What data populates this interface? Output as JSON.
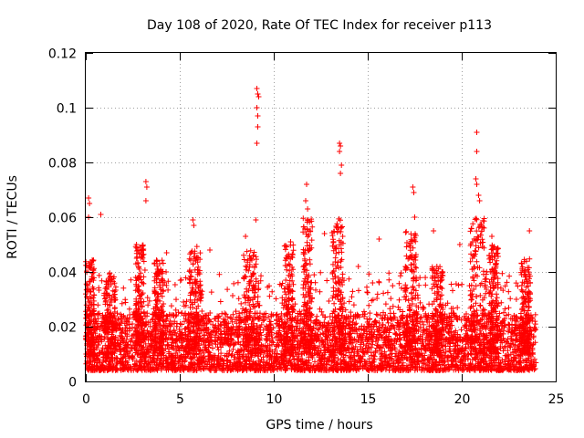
{
  "chart_data": {
    "type": "scatter",
    "title": "Day 108 of 2020, Rate Of TEC Index for receiver p113",
    "xlabel": "GPS time / hours",
    "ylabel": "ROTI / TECUs",
    "xlim": [
      0,
      25
    ],
    "ylim": [
      0,
      0.12
    ],
    "x_ticks": [
      0,
      5,
      10,
      15,
      20,
      25
    ],
    "y_ticks": [
      0,
      0.02,
      0.04,
      0.06,
      0.08,
      0.1,
      0.12
    ],
    "x_tick_labels": [
      "0",
      "5",
      "10",
      "15",
      "20",
      "25"
    ],
    "y_tick_labels": [
      "0",
      "0.02",
      "0.04",
      "0.06",
      "0.08",
      "0.1",
      "0.12"
    ],
    "grid": true,
    "marker": "plus",
    "series_color": "#ff0000",
    "x_range_of_data": [
      0,
      23.95
    ],
    "outlier_points": [
      {
        "x": 9.1,
        "y": 0.107
      },
      {
        "x": 9.15,
        "y": 0.105
      },
      {
        "x": 9.2,
        "y": 0.104
      },
      {
        "x": 9.1,
        "y": 0.1
      },
      {
        "x": 9.15,
        "y": 0.097
      },
      {
        "x": 9.15,
        "y": 0.093
      },
      {
        "x": 9.1,
        "y": 0.087
      },
      {
        "x": 9.05,
        "y": 0.059
      },
      {
        "x": 13.5,
        "y": 0.087
      },
      {
        "x": 13.55,
        "y": 0.086
      },
      {
        "x": 13.5,
        "y": 0.084
      },
      {
        "x": 13.6,
        "y": 0.079
      },
      {
        "x": 13.55,
        "y": 0.076
      },
      {
        "x": 20.8,
        "y": 0.091
      },
      {
        "x": 20.8,
        "y": 0.084
      },
      {
        "x": 20.75,
        "y": 0.074
      },
      {
        "x": 20.8,
        "y": 0.072
      },
      {
        "x": 20.9,
        "y": 0.068
      },
      {
        "x": 20.95,
        "y": 0.066
      },
      {
        "x": 3.2,
        "y": 0.073
      },
      {
        "x": 3.25,
        "y": 0.071
      },
      {
        "x": 3.2,
        "y": 0.066
      },
      {
        "x": 11.75,
        "y": 0.072
      },
      {
        "x": 11.7,
        "y": 0.066
      },
      {
        "x": 11.8,
        "y": 0.063
      },
      {
        "x": 17.4,
        "y": 0.071
      },
      {
        "x": 17.45,
        "y": 0.069
      },
      {
        "x": 17.5,
        "y": 0.06
      },
      {
        "x": 0.15,
        "y": 0.067
      },
      {
        "x": 0.2,
        "y": 0.065
      },
      {
        "x": 0.15,
        "y": 0.06
      },
      {
        "x": 0.8,
        "y": 0.061
      },
      {
        "x": 5.7,
        "y": 0.059
      },
      {
        "x": 5.75,
        "y": 0.057
      },
      {
        "x": 18.5,
        "y": 0.055
      },
      {
        "x": 23.6,
        "y": 0.055
      },
      {
        "x": 15.6,
        "y": 0.052
      },
      {
        "x": 10.9,
        "y": 0.051
      },
      {
        "x": 6.6,
        "y": 0.048
      },
      {
        "x": 2.7,
        "y": 0.05
      },
      {
        "x": 19.9,
        "y": 0.05
      },
      {
        "x": 21.6,
        "y": 0.053
      },
      {
        "x": 12.7,
        "y": 0.054
      },
      {
        "x": 8.5,
        "y": 0.053
      },
      {
        "x": 4.3,
        "y": 0.047
      },
      {
        "x": 14.5,
        "y": 0.042
      }
    ],
    "bursts": [
      {
        "center": 0.2,
        "width": 0.5,
        "peak": 0.045
      },
      {
        "center": 1.3,
        "width": 0.6,
        "peak": 0.04
      },
      {
        "center": 2.9,
        "width": 0.5,
        "peak": 0.05
      },
      {
        "center": 3.9,
        "width": 0.5,
        "peak": 0.045
      },
      {
        "center": 5.8,
        "width": 0.7,
        "peak": 0.05
      },
      {
        "center": 8.8,
        "width": 0.8,
        "peak": 0.048
      },
      {
        "center": 10.8,
        "width": 0.5,
        "peak": 0.05
      },
      {
        "center": 11.8,
        "width": 0.5,
        "peak": 0.06
      },
      {
        "center": 13.4,
        "width": 0.6,
        "peak": 0.06
      },
      {
        "center": 17.3,
        "width": 0.6,
        "peak": 0.055
      },
      {
        "center": 18.7,
        "width": 0.6,
        "peak": 0.042
      },
      {
        "center": 20.9,
        "width": 0.9,
        "peak": 0.06
      },
      {
        "center": 21.7,
        "width": 0.5,
        "peak": 0.05
      },
      {
        "center": 23.4,
        "width": 0.5,
        "peak": 0.045
      }
    ],
    "base_level": [
      0.004,
      0.025
    ]
  }
}
